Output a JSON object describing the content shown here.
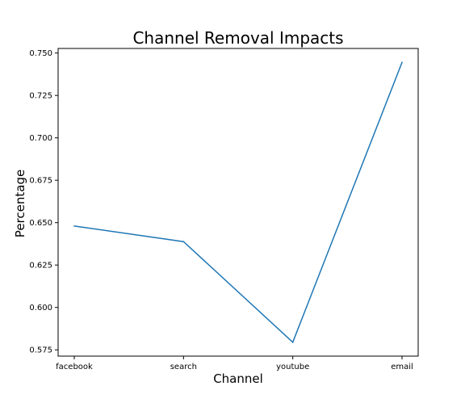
{
  "chart_data": {
    "type": "line",
    "title": "Channel Removal Impacts",
    "xlabel": "Channel",
    "ylabel": "Percentage",
    "categories": [
      "facebook",
      "search",
      "youtube",
      "email"
    ],
    "series": [
      {
        "values": [
          0.648,
          0.6388,
          0.5795,
          0.7445
        ],
        "color": "#1f77b4"
      }
    ],
    "yticks": [
      0.575,
      0.6,
      0.625,
      0.65,
      0.675,
      0.7,
      0.725,
      0.75
    ],
    "ytick_labels": [
      "0.575",
      "0.600",
      "0.625",
      "0.650",
      "0.675",
      "0.700",
      "0.725",
      "0.750"
    ],
    "ylim": [
      0.5713,
      0.7527
    ],
    "grid": false,
    "legend": "none"
  }
}
